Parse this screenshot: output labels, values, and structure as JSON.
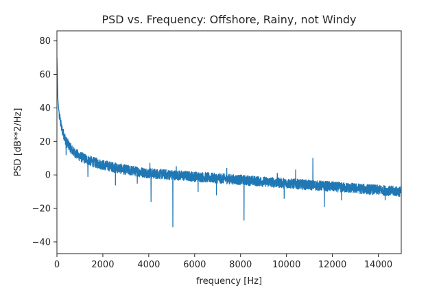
{
  "chart_data": {
    "type": "line",
    "title": "PSD vs. Frequency: Offshore, Rainy, not Windy",
    "xlabel": "frequency [Hz]",
    "ylabel": "PSD [dB**2/Hz]",
    "xlim": [
      0,
      15000
    ],
    "ylim": [
      -47,
      86
    ],
    "xticks": [
      0,
      2000,
      4000,
      6000,
      8000,
      10000,
      12000,
      14000
    ],
    "yticks": [
      -40,
      -20,
      0,
      20,
      40,
      60,
      80
    ],
    "xtick_labels": [
      "0",
      "2000",
      "4000",
      "6000",
      "8000",
      "10000",
      "12000",
      "14000"
    ],
    "ytick_labels": [
      "−40",
      "−20",
      "0",
      "20",
      "40",
      "60",
      "80"
    ],
    "grid": false,
    "series": [
      {
        "color": "#1f77b4",
        "trend_x": [
          0,
          40,
          100,
          200,
          400,
          700,
          1000,
          1500,
          2000,
          3000,
          4000,
          5000,
          6000,
          7000,
          8000,
          9000,
          10000,
          11000,
          12000,
          13000,
          14000,
          15000
        ],
        "trend_y": [
          70,
          45,
          36,
          28,
          20,
          14,
          11,
          8,
          6,
          3,
          1,
          0,
          -1,
          -2,
          -3,
          -4,
          -5,
          -6,
          -7,
          -8,
          -9,
          -10
        ],
        "noise_amplitude": 3,
        "spikes": [
          {
            "x": 5050,
            "y": -31
          },
          {
            "x": 8150,
            "y": -27
          },
          {
            "x": 4100,
            "y": -16
          },
          {
            "x": 5200,
            "y": -20
          },
          {
            "x": 1350,
            "y": -1
          },
          {
            "x": 2550,
            "y": -6
          },
          {
            "x": 3500,
            "y": -5
          },
          {
            "x": 6150,
            "y": -10
          },
          {
            "x": 6950,
            "y": -12
          },
          {
            "x": 9900,
            "y": -14
          },
          {
            "x": 11650,
            "y": -19
          },
          {
            "x": 12400,
            "y": -15
          },
          {
            "x": 14300,
            "y": -15
          },
          {
            "x": 4050,
            "y": 7
          },
          {
            "x": 5200,
            "y": 5
          },
          {
            "x": 7400,
            "y": 4
          },
          {
            "x": 9600,
            "y": 1
          },
          {
            "x": 10400,
            "y": 3
          },
          {
            "x": 11150,
            "y": 10
          },
          {
            "x": 400,
            "y": 12
          }
        ]
      }
    ]
  }
}
